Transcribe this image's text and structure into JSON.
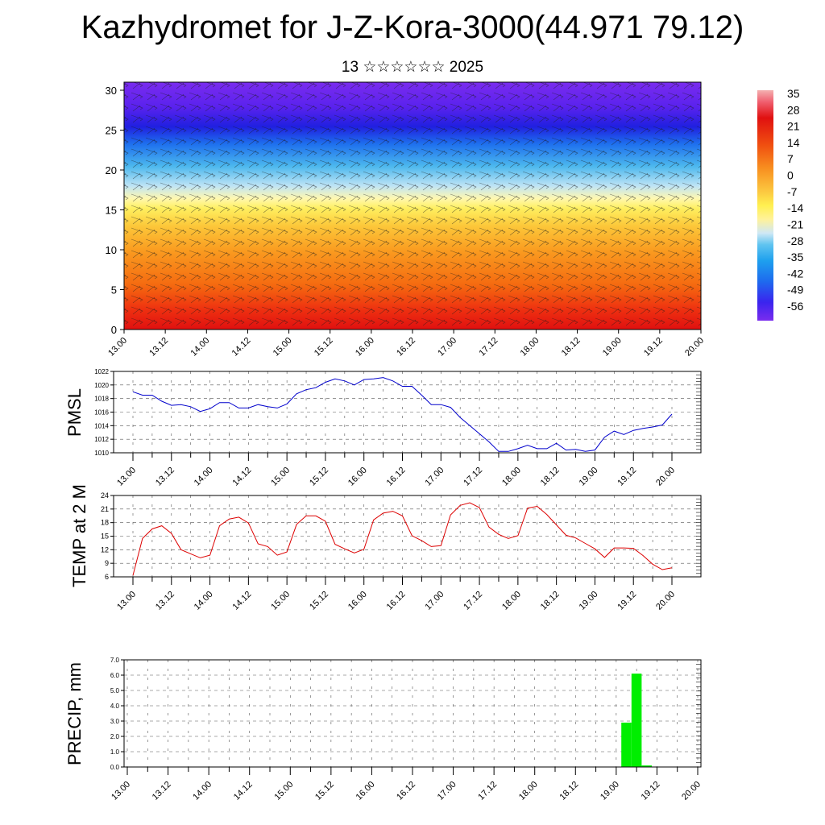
{
  "header": {
    "title": "Kazhydromet for J-Z-Kora-3000(44.971 79.12)",
    "subtitle": "13 ☆☆☆☆☆☆ 2025"
  },
  "chart_data": [
    {
      "type": "heatmap",
      "name": "cross-section",
      "ylim": [
        0,
        30
      ],
      "y_ticks": [
        "0",
        "5",
        "10",
        "15",
        "20",
        "25",
        "30"
      ],
      "x_ticks": [
        "13.00",
        "13.12",
        "14.00",
        "14.12",
        "15.00",
        "15.12",
        "16.00",
        "16.12",
        "17.00",
        "17.12",
        "18.00",
        "18.12",
        "19.00",
        "19.12",
        "20.00"
      ],
      "colorbar": {
        "labels": [
          "35",
          "28",
          "21",
          "14",
          "7",
          "0",
          "-7",
          "-14",
          "-21",
          "-28",
          "-35",
          "-42",
          "-49",
          "-56"
        ],
        "range": [
          -63,
          42
        ]
      },
      "colors": {
        "warm": "#ee1111",
        "mid": "#ffee44",
        "cold": "#3aa8ee",
        "coldest": "#6e22ee"
      }
    },
    {
      "type": "line",
      "ylabel": "PMSL",
      "ylim": [
        1010,
        1022
      ],
      "y_ticks": [
        "1010",
        "1012",
        "1014",
        "1016",
        "1018",
        "1020",
        "1022"
      ],
      "x_ticks": [
        "13.00",
        "13.12",
        "14.00",
        "14.12",
        "15.00",
        "15.12",
        "16.00",
        "16.12",
        "17.00",
        "17.12",
        "18.00",
        "18.12",
        "19.00",
        "19.12",
        "20.00"
      ],
      "color": "#0000cc",
      "x_step_hours": 3,
      "values": [
        1019.0,
        1018.5,
        1018.5,
        1017.6,
        1017.0,
        1017.1,
        1016.8,
        1016.1,
        1016.5,
        1017.4,
        1017.4,
        1016.6,
        1016.6,
        1017.1,
        1016.8,
        1016.6,
        1017.2,
        1018.7,
        1019.3,
        1019.6,
        1020.4,
        1020.9,
        1020.6,
        1020.0,
        1020.8,
        1020.9,
        1021.1,
        1020.6,
        1019.8,
        1019.8,
        1018.5,
        1017.1,
        1017.1,
        1016.7,
        1015.2,
        1014.0,
        1012.8,
        1011.6,
        1010.2,
        1010.2,
        1010.6,
        1011.1,
        1010.6,
        1010.6,
        1011.4,
        1010.4,
        1010.5,
        1010.2,
        1010.4,
        1012.3,
        1013.2,
        1012.7,
        1013.3,
        1013.6,
        1013.8,
        1014.1,
        1015.7
      ]
    },
    {
      "type": "line",
      "ylabel": "TEMP at 2 M",
      "ylim": [
        6,
        24
      ],
      "y_ticks": [
        "6",
        "9",
        "12",
        "15",
        "18",
        "21",
        "24"
      ],
      "x_ticks": [
        "13.00",
        "13.12",
        "14.00",
        "14.12",
        "15.00",
        "15.12",
        "16.00",
        "16.12",
        "17.00",
        "17.12",
        "18.00",
        "18.12",
        "19.00",
        "19.12",
        "20.00"
      ],
      "color": "#dd0000",
      "x_step_hours": 3,
      "values": [
        6.3,
        14.5,
        16.6,
        17.3,
        15.6,
        12.0,
        11.1,
        10.2,
        10.8,
        17.3,
        18.8,
        19.2,
        17.9,
        13.3,
        12.7,
        10.8,
        11.5,
        17.6,
        19.5,
        19.5,
        18.3,
        13.2,
        12.2,
        11.3,
        12.1,
        18.6,
        20.1,
        20.5,
        19.5,
        15.1,
        14.0,
        12.7,
        12.9,
        19.7,
        21.8,
        22.4,
        21.3,
        17.0,
        15.4,
        14.5,
        15.1,
        21.2,
        21.6,
        19.8,
        17.5,
        15.2,
        14.6,
        13.4,
        12.2,
        10.3,
        12.4,
        12.4,
        12.3,
        10.7,
        8.8,
        7.6,
        8.0
      ]
    },
    {
      "type": "bar",
      "ylabel": "PRECIP, mm",
      "ylim": [
        0,
        7
      ],
      "y_ticks": [
        "0.0",
        "1.0",
        "2.0",
        "3.0",
        "4.0",
        "5.0",
        "6.0",
        "7.0"
      ],
      "x_ticks": [
        "13.00",
        "13.12",
        "14.00",
        "14.12",
        "15.00",
        "15.12",
        "16.00",
        "16.12",
        "17.00",
        "17.12",
        "18.00",
        "18.12",
        "19.00",
        "19.12",
        "20.00"
      ],
      "color": "#00ee00",
      "x_step_hours": 3,
      "values": [
        0,
        0,
        0,
        0,
        0,
        0,
        0,
        0,
        0,
        0,
        0,
        0,
        0,
        0,
        0,
        0,
        0,
        0,
        0,
        0,
        0,
        0,
        0,
        0,
        0,
        0,
        0,
        0,
        0,
        0,
        0,
        0,
        0,
        0,
        0,
        0,
        0,
        0,
        0,
        0,
        0,
        0,
        0,
        0,
        0,
        0,
        0,
        0,
        0,
        2.9,
        6.1,
        0.1,
        0,
        0,
        0,
        0,
        0
      ]
    }
  ]
}
